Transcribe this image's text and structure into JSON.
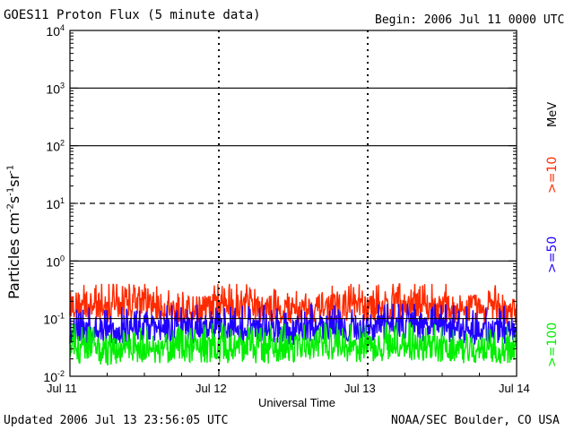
{
  "header": {
    "title": "GOES11 Proton Flux (5 minute data)",
    "begin": "Begin: 2006 Jul 11 0000 UTC"
  },
  "footer": {
    "updated": "Updated 2006 Jul 13 23:56:05 UTC",
    "credit": "NOAA/SEC Boulder, CO USA"
  },
  "legend": {
    "unit": "MeV",
    "entries": [
      ">=10",
      ">=50",
      ">=100"
    ]
  },
  "colors": {
    "s1": "#ff2a00",
    "s2": "#2000ff",
    "s3": "#00ee00",
    "axis": "#000000",
    "background": "#ffffff"
  },
  "chart_data": {
    "type": "line",
    "title": "GOES11 Proton Flux (5 minute data)",
    "xlabel": "Universal Time",
    "ylabel": "Particles cm-2s-1sr-1",
    "yscale": "log",
    "ylim": [
      0.01,
      10000
    ],
    "grid": "horizontal lines at each decade, 10^1 dashed",
    "legend_position": "right, vertical",
    "x_ticks": [
      "Jul 11",
      "Jul 12",
      "Jul 13",
      "Jul 14"
    ],
    "y_ticks": [
      "10^-2",
      "10^-1",
      "10^0",
      "10^1",
      "10^2",
      "10^3",
      "10^4"
    ],
    "xlim": [
      "2006-07-11T00:00Z",
      "2006-07-14T00:00Z"
    ],
    "series": [
      {
        "name": ">=10",
        "color": "#ff2a00",
        "typical": 0.15,
        "range": [
          0.08,
          0.4
        ],
        "samples": [
          {
            "x": "2006-07-11T00:00Z",
            "y": 0.18
          },
          {
            "x": "2006-07-11T06:00Z",
            "y": 0.15
          },
          {
            "x": "2006-07-11T12:00Z",
            "y": 0.17
          },
          {
            "x": "2006-07-11T18:00Z",
            "y": 0.14
          },
          {
            "x": "2006-07-12T00:00Z",
            "y": 0.16
          },
          {
            "x": "2006-07-12T06:00Z",
            "y": 0.15
          },
          {
            "x": "2006-07-12T12:00Z",
            "y": 0.14
          },
          {
            "x": "2006-07-12T18:00Z",
            "y": 0.16
          },
          {
            "x": "2006-07-13T00:00Z",
            "y": 0.15
          },
          {
            "x": "2006-07-13T06:00Z",
            "y": 0.17
          },
          {
            "x": "2006-07-13T12:00Z",
            "y": 0.15
          },
          {
            "x": "2006-07-13T18:00Z",
            "y": 0.14
          },
          {
            "x": "2006-07-14T00:00Z",
            "y": 0.13
          }
        ]
      },
      {
        "name": ">=50",
        "color": "#2000ff",
        "typical": 0.06,
        "range": [
          0.03,
          0.18
        ],
        "samples": [
          {
            "x": "2006-07-11T00:00Z",
            "y": 0.06
          },
          {
            "x": "2006-07-11T06:00Z",
            "y": 0.055
          },
          {
            "x": "2006-07-11T12:00Z",
            "y": 0.07
          },
          {
            "x": "2006-07-11T18:00Z",
            "y": 0.06
          },
          {
            "x": "2006-07-12T00:00Z",
            "y": 0.07
          },
          {
            "x": "2006-07-12T06:00Z",
            "y": 0.065
          },
          {
            "x": "2006-07-12T12:00Z",
            "y": 0.06
          },
          {
            "x": "2006-07-12T18:00Z",
            "y": 0.07
          },
          {
            "x": "2006-07-13T00:00Z",
            "y": 0.07
          },
          {
            "x": "2006-07-13T06:00Z",
            "y": 0.075
          },
          {
            "x": "2006-07-13T12:00Z",
            "y": 0.065
          },
          {
            "x": "2006-07-13T18:00Z",
            "y": 0.06
          },
          {
            "x": "2006-07-14T00:00Z",
            "y": 0.06
          }
        ]
      },
      {
        "name": ">=100",
        "color": "#00ee00",
        "typical": 0.03,
        "range": [
          0.016,
          0.1
        ],
        "samples": [
          {
            "x": "2006-07-11T00:00Z",
            "y": 0.03
          },
          {
            "x": "2006-07-11T06:00Z",
            "y": 0.025
          },
          {
            "x": "2006-07-11T12:00Z",
            "y": 0.03
          },
          {
            "x": "2006-07-11T18:00Z",
            "y": 0.028
          },
          {
            "x": "2006-07-12T00:00Z",
            "y": 0.03
          },
          {
            "x": "2006-07-12T06:00Z",
            "y": 0.027
          },
          {
            "x": "2006-07-12T12:00Z",
            "y": 0.03
          },
          {
            "x": "2006-07-12T18:00Z",
            "y": 0.032
          },
          {
            "x": "2006-07-13T00:00Z",
            "y": 0.03
          },
          {
            "x": "2006-07-13T06:00Z",
            "y": 0.033
          },
          {
            "x": "2006-07-13T12:00Z",
            "y": 0.03
          },
          {
            "x": "2006-07-13T18:00Z",
            "y": 0.028
          },
          {
            "x": "2006-07-14T00:00Z",
            "y": 0.028
          }
        ]
      }
    ]
  }
}
